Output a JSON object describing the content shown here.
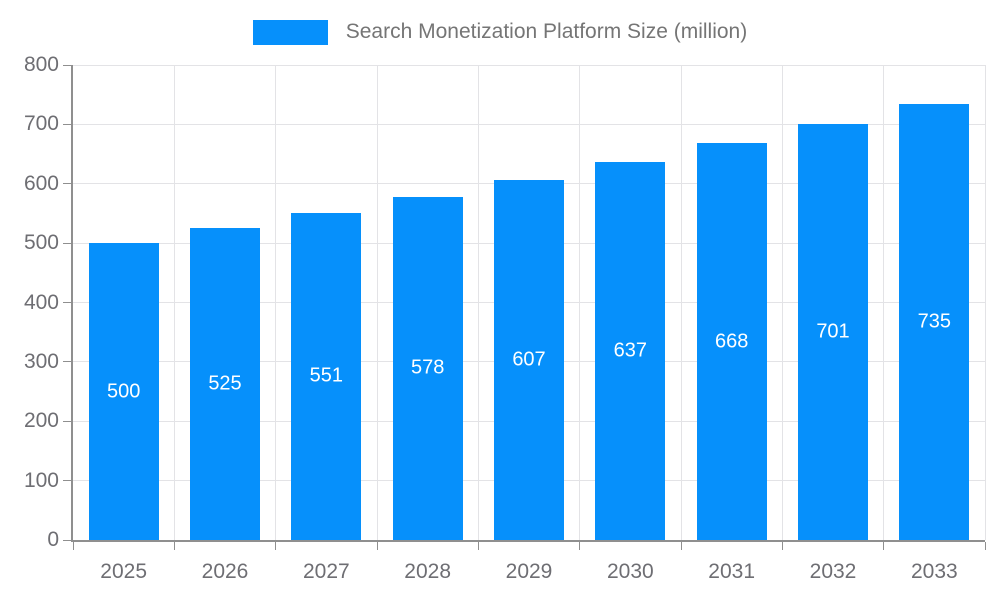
{
  "chart_data": {
    "type": "bar",
    "title": "",
    "legend": "Search Monetization Platform Size (million)",
    "legend_position": "top",
    "series": [
      {
        "name": "Search Monetization Platform Size (million)",
        "values": [
          500,
          525,
          551,
          578,
          607,
          637,
          668,
          701,
          735
        ]
      }
    ],
    "categories": [
      "2025",
      "2026",
      "2027",
      "2028",
      "2029",
      "2030",
      "2031",
      "2032",
      "2033"
    ],
    "xlabel": "",
    "ylabel": "",
    "ylim": [
      0,
      800
    ],
    "yticks": [
      0,
      100,
      200,
      300,
      400,
      500,
      600,
      700,
      800
    ],
    "grid": true,
    "data_labels": "inside-center",
    "colors": {
      "bar": "#0690FB",
      "bar_label": "#ffffff",
      "axis": "#8f8f8f",
      "grid": "#e3e3e6",
      "tick_label": "#6e6e73",
      "legend_text": "#757575",
      "background": "#ffffff"
    }
  }
}
